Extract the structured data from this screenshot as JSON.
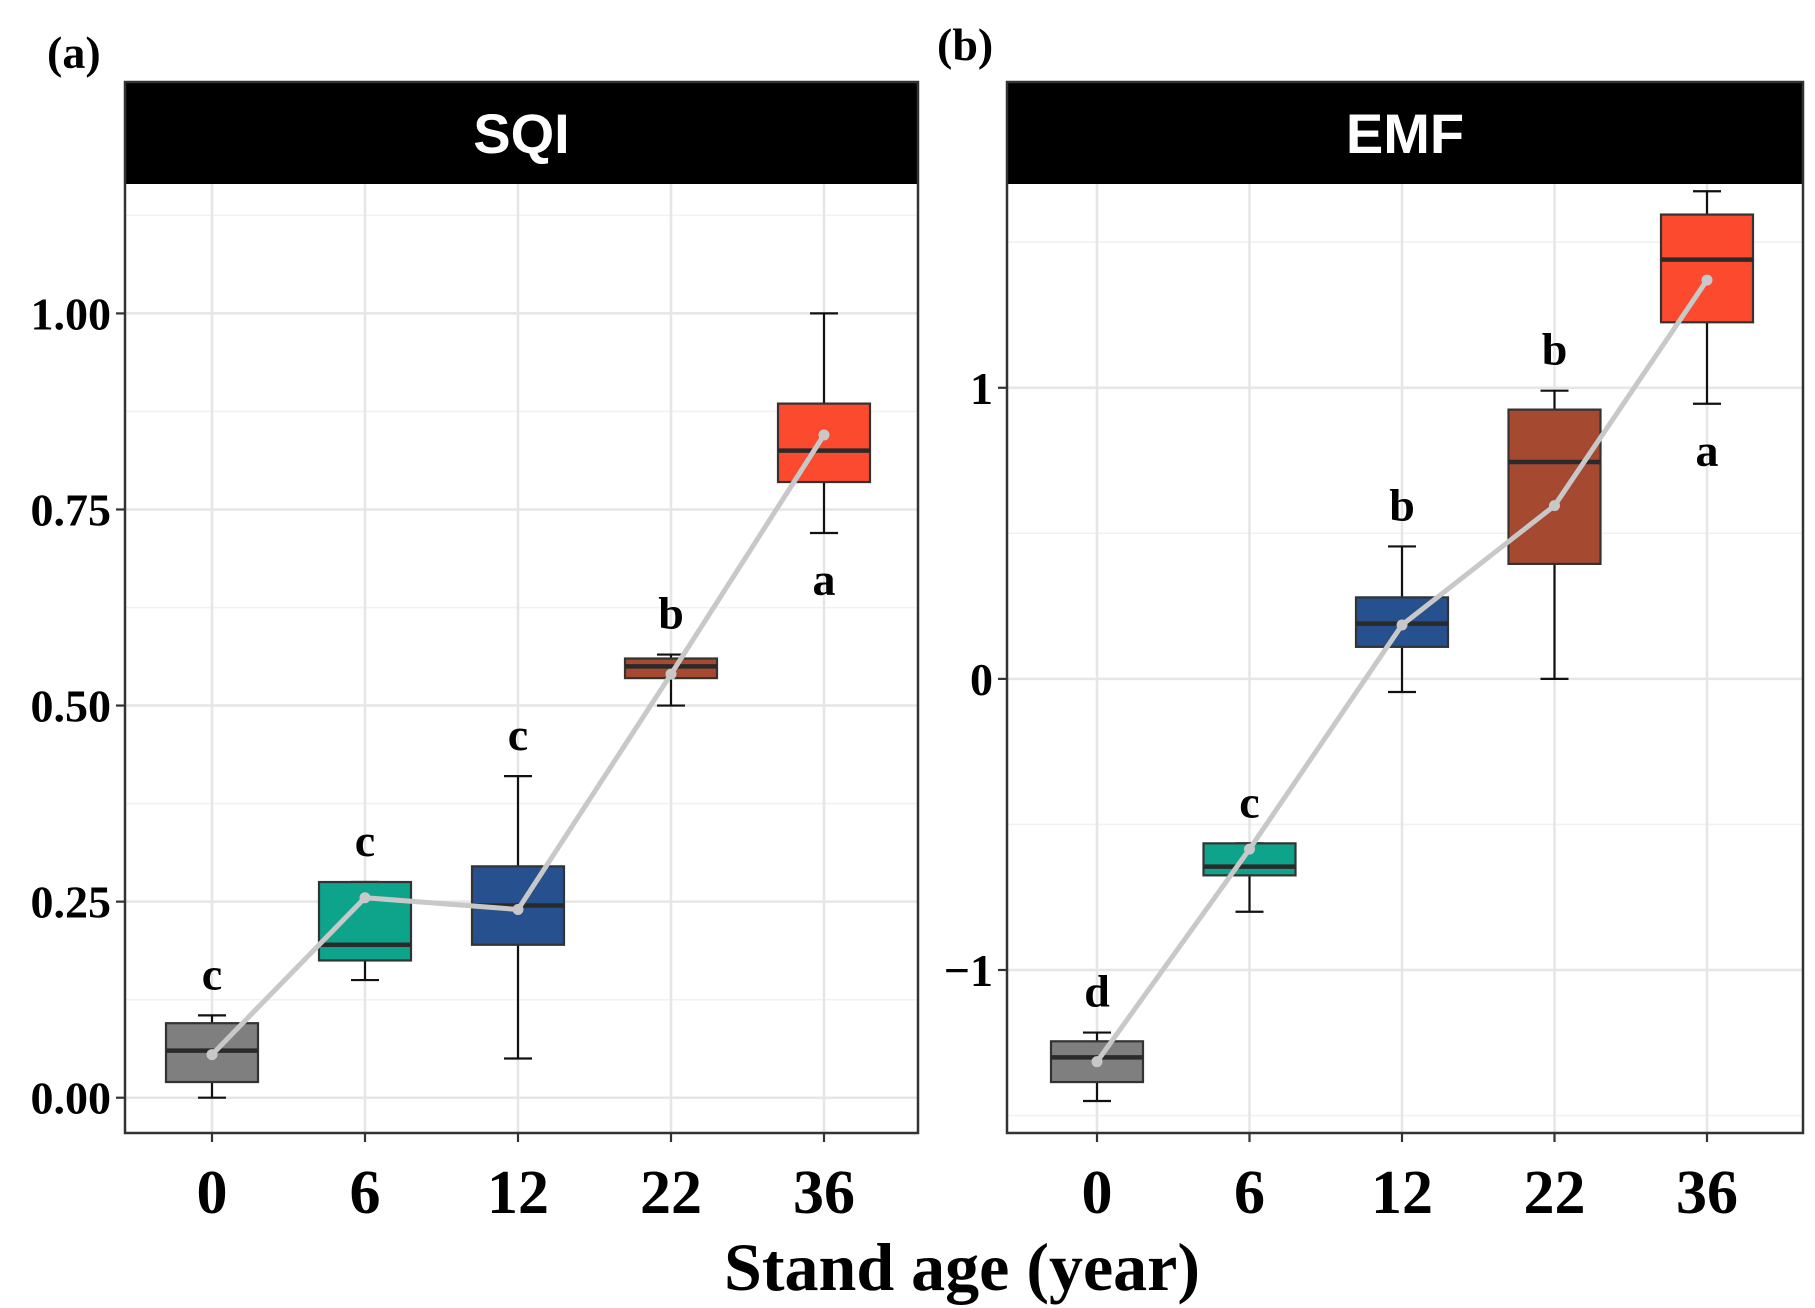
{
  "xlabel": "Stand age (year)",
  "chart_data": [
    {
      "type": "box",
      "panel": "(a)",
      "title": "SQI",
      "categories": [
        "0",
        "6",
        "12",
        "22",
        "36"
      ],
      "ylim": [
        -0.045,
        1.165
      ],
      "yticks": [
        0.0,
        0.25,
        0.5,
        0.75,
        1.0
      ],
      "ytick_labels": [
        "0.00",
        "0.25",
        "0.50",
        "0.75",
        "1.00"
      ],
      "grid": true,
      "boxes": [
        {
          "min": 0.0,
          "q1": 0.02,
          "median": 0.06,
          "q3": 0.095,
          "max": 0.105,
          "mean": 0.055,
          "color": "#7f7f7f",
          "letter": "c"
        },
        {
          "min": 0.15,
          "q1": 0.175,
          "median": 0.195,
          "q3": 0.275,
          "max": 0.275,
          "mean": 0.255,
          "color": "#0ea48c",
          "letter": "c"
        },
        {
          "min": 0.05,
          "q1": 0.195,
          "median": 0.245,
          "q3": 0.295,
          "max": 0.41,
          "mean": 0.24,
          "color": "#27508e",
          "letter": "c"
        },
        {
          "min": 0.5,
          "q1": 0.535,
          "median": 0.55,
          "q3": 0.56,
          "max": 0.565,
          "mean": 0.54,
          "color": "#a54a30",
          "letter": "b"
        },
        {
          "min": 0.72,
          "q1": 0.785,
          "median": 0.825,
          "q3": 0.885,
          "max": 1.0,
          "mean": 0.845,
          "color": "#fb4a2e",
          "letter": "a"
        }
      ]
    },
    {
      "type": "box",
      "panel": "(b)",
      "title": "EMF",
      "categories": [
        "0",
        "6",
        "12",
        "22",
        "36"
      ],
      "ylim": [
        -1.56,
        1.7
      ],
      "yticks": [
        -1,
        0,
        1
      ],
      "ytick_labels": [
        "−1",
        "0",
        "1"
      ],
      "grid": true,
      "boxes": [
        {
          "min": -1.45,
          "q1": -1.385,
          "median": -1.3,
          "q3": -1.245,
          "max": -1.215,
          "mean": -1.315,
          "color": "#7f7f7f",
          "letter": "d"
        },
        {
          "min": -0.8,
          "q1": -0.675,
          "median": -0.645,
          "q3": -0.565,
          "max": -0.565,
          "mean": -0.585,
          "color": "#0ea48c",
          "letter": "c"
        },
        {
          "min": -0.045,
          "q1": 0.11,
          "median": 0.19,
          "q3": 0.28,
          "max": 0.455,
          "mean": 0.185,
          "color": "#27508e",
          "letter": "b"
        },
        {
          "min": 0.0,
          "q1": 0.395,
          "median": 0.745,
          "q3": 0.925,
          "max": 0.99,
          "mean": 0.595,
          "color": "#a54a30",
          "letter": "b"
        },
        {
          "min": 0.945,
          "q1": 1.225,
          "median": 1.44,
          "q3": 1.595,
          "max": 1.675,
          "mean": 1.37,
          "color": "#fb4a2e",
          "letter": "a"
        }
      ]
    }
  ]
}
